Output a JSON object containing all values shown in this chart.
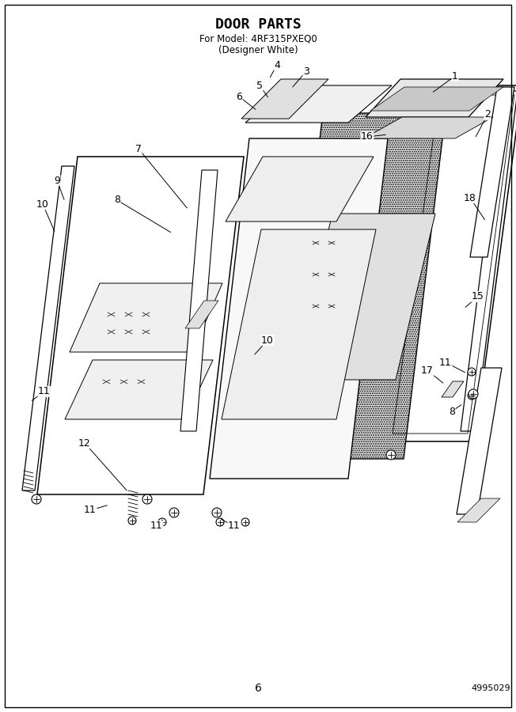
{
  "title": "DOOR PARTS",
  "subtitle1": "For Model: 4RF315PXEQ0",
  "subtitle2": "(Designer White)",
  "page_number": "6",
  "part_number": "4995029",
  "bg_color": "#ffffff",
  "line_color": "#000000",
  "title_fontsize": 13,
  "subtitle_fontsize": 8.5,
  "label_fontsize": 9,
  "figw": 6.52,
  "figh": 9.0
}
